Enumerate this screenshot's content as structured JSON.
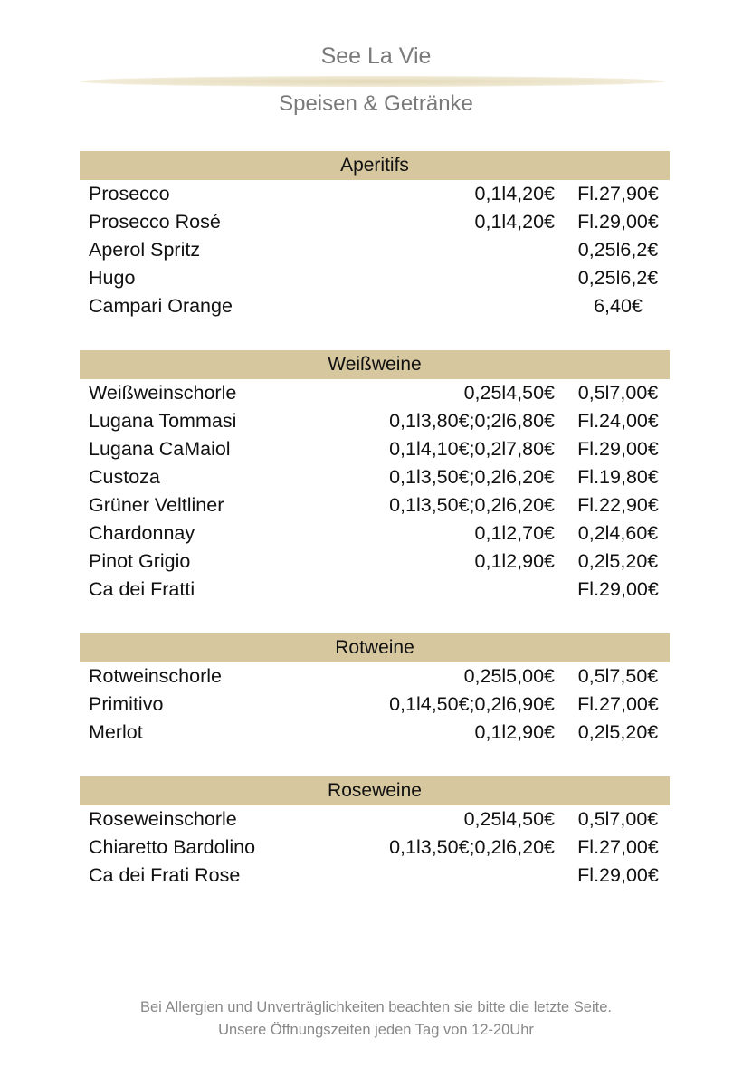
{
  "header": {
    "title": "See La Vie",
    "subtitle": "Speisen & Getränke"
  },
  "sections": [
    {
      "title": "Aperitifs",
      "items": [
        {
          "name": "Prosecco",
          "price1": "0,1l4,20€",
          "price2": "Fl.27,90€"
        },
        {
          "name": "Prosecco Rosé",
          "price1": "0,1l4,20€",
          "price2": "Fl.29,00€"
        },
        {
          "name": "Aperol Spritz",
          "price2": "0,25l6,2€"
        },
        {
          "name": "Hugo",
          "price2": "0,25l6,2€"
        },
        {
          "name": "Campari Orange",
          "price2": "6,40€"
        }
      ]
    },
    {
      "title": "Weißweine",
      "items": [
        {
          "name": "Weißweinschorle",
          "price1": "0,25l4,50€",
          "price2": "0,5l7,00€"
        },
        {
          "name": "Lugana Tommasi",
          "price1": "0,1l3,80€;0;2l6,80€",
          "price2": "Fl.24,00€"
        },
        {
          "name": "Lugana CaMaiol",
          "price1": "0,1l4,10€;0,2l7,80€",
          "price2": "Fl.29,00€"
        },
        {
          "name": "Custoza",
          "price1": "0,1l3,50€;0,2l6,20€",
          "price2": "Fl.19,80€"
        },
        {
          "name": "Grüner Veltliner",
          "price1": "0,1l3,50€;0,2l6,20€",
          "price2": "Fl.22,90€"
        },
        {
          "name": "Chardonnay",
          "price1": "0,1l2,70€",
          "price2": "0,2l4,60€"
        },
        {
          "name": "Pinot Grigio",
          "price1": "0,1l2,90€",
          "price2": "0,2l5,20€"
        },
        {
          "name": "Ca dei Fratti",
          "price2": "Fl.29,00€"
        }
      ]
    },
    {
      "title": "Rotweine",
      "items": [
        {
          "name": "Rotweinschorle",
          "price1": "0,25l5,00€",
          "price2": "0,5l7,50€"
        },
        {
          "name": "Primitivo",
          "price1": "0,1l4,50€;0,2l6,90€",
          "price2": "Fl.27,00€"
        },
        {
          "name": "Merlot",
          "price1": "0,1l2,90€",
          "price2": "0,2l5,20€"
        }
      ]
    },
    {
      "title": "Roseweine",
      "items": [
        {
          "name": "Roseweinschorle",
          "price1": "0,25l4,50€",
          "price2": "0,5l7,00€"
        },
        {
          "name": "Chiaretto Bardolino",
          "price1": "0,1l3,50€;0,2l6,20€",
          "price2": "Fl.27,00€"
        },
        {
          "name": "Ca dei Frati Rose",
          "price2": "Fl.29,00€"
        }
      ]
    }
  ],
  "footer": {
    "line1": "Bei Allergien und Unverträglichkeiten beachten sie bitte die letzte Seite.",
    "line2": "Unsere Öffnungszeiten jeden Tag von 12-20Uhr"
  }
}
